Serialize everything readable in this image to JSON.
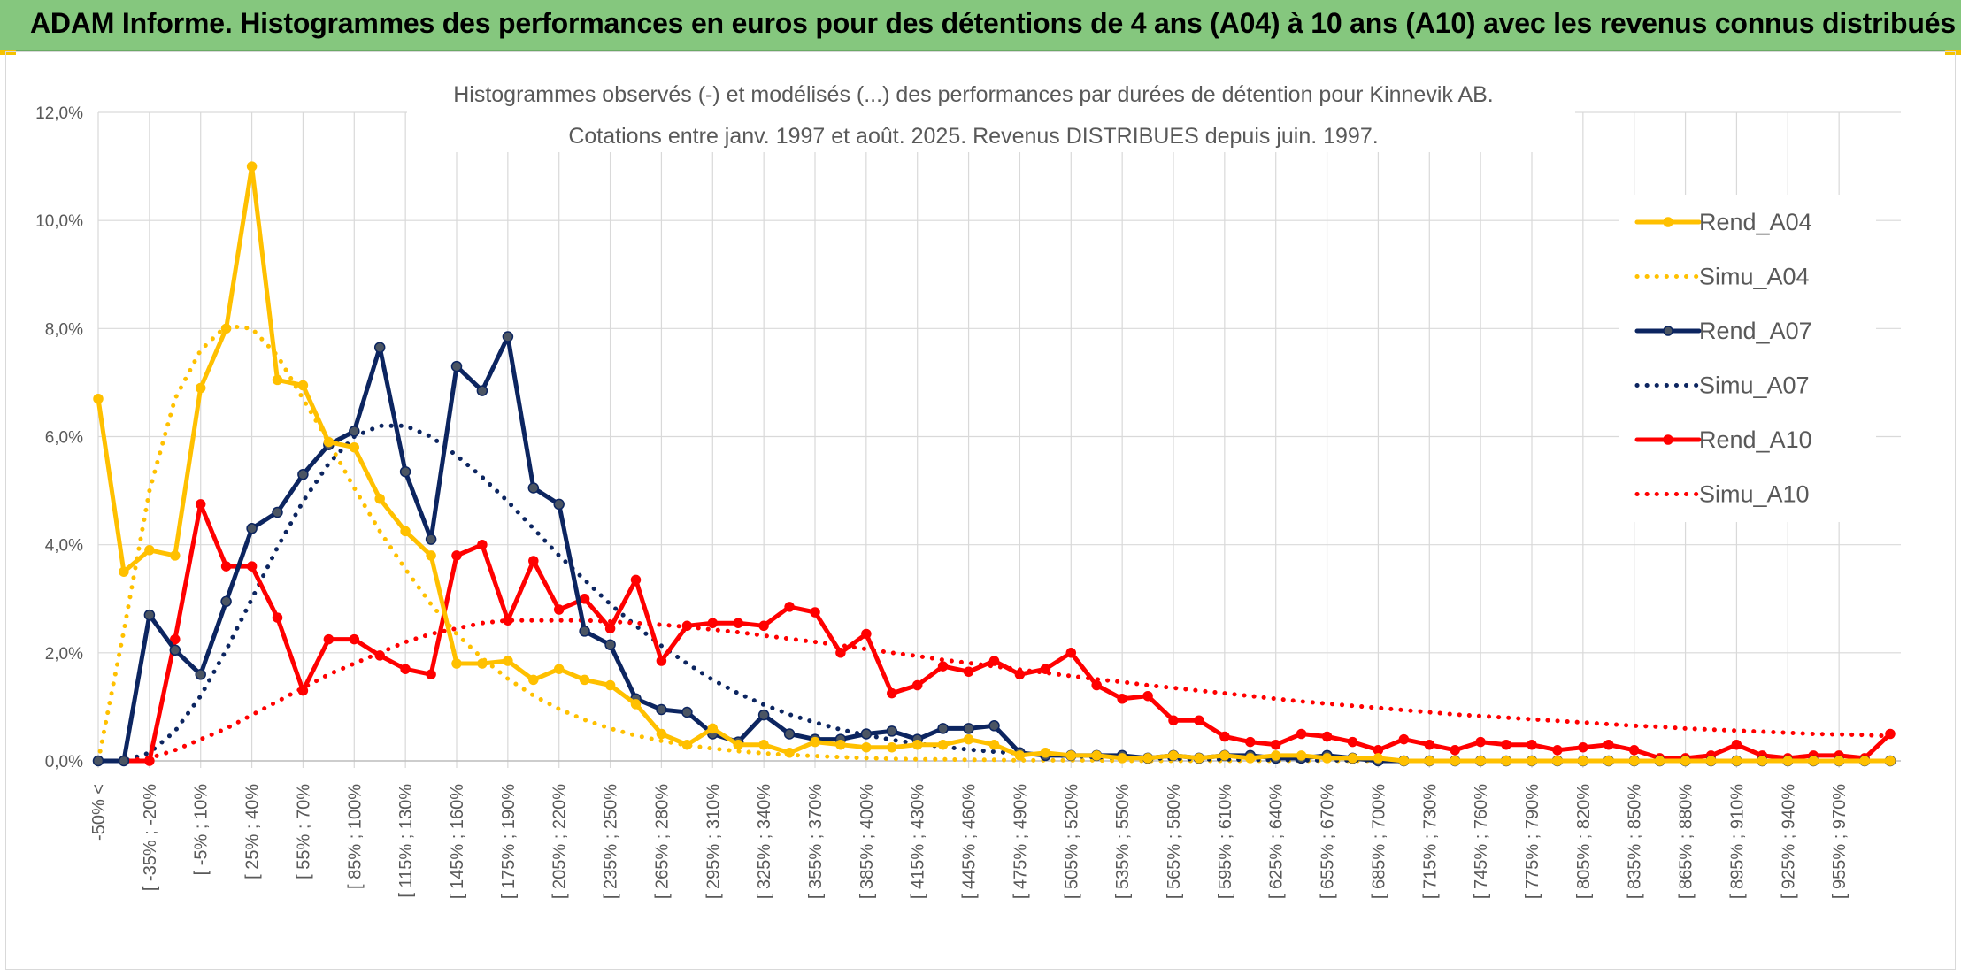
{
  "banner": {
    "title": "ADAM Informe. Histogrammes des performances en euros pour des détentions de 4 ans (A04) à 10 ans (A10) avec les revenus connus distribués"
  },
  "colors": {
    "banner_bg": "#85c77e",
    "accent_corner": "#f5c200",
    "A04": "#ffc000",
    "A07": "#0c2560",
    "A10": "#ff0000",
    "gridline": "#d9d9d9",
    "text": "#595959"
  },
  "chart_data": {
    "type": "line",
    "title": [
      "Histogrammes observés (-) et modélisés (...) des performances par durées de détention pour Kinnevik AB.",
      "Cotations entre janv. 1997 et août. 2025. Revenus DISTRIBUES depuis juin. 1997."
    ],
    "ylim": [
      0,
      12
    ],
    "y_ticks": [
      "0,0%",
      "2,0%",
      "4,0%",
      "6,0%",
      "8,0%",
      "10,0%",
      "12,0%"
    ],
    "y_tick_values": [
      0,
      2,
      4,
      6,
      8,
      10,
      12
    ],
    "grid": true,
    "legend_position": "right",
    "x_labels": [
      "-50% <",
      "[ -35% ; -20%",
      "[ -5% ; 10%",
      "[ 25% ; 40%",
      "[ 55% ; 70%",
      "[ 85% ; 100%",
      "[ 115% ; 130%",
      "[ 145% ; 160%",
      "[ 175% ; 190%",
      "[ 205% ; 220%",
      "[ 235% ; 250%",
      "[ 265% ; 280%",
      "[ 295% ; 310%",
      "[ 325% ; 340%",
      "[ 355% ; 370%",
      "[ 385% ; 400%",
      "[ 415% ; 430%",
      "[ 445% ; 460%",
      "[ 475% ; 490%",
      "[ 505% ; 520%",
      "[ 535% ; 550%",
      "[ 565% ; 580%",
      "[ 595% ; 610%",
      "[ 625% ; 640%",
      "[ 655% ; 670%",
      "[ 685% ; 700%",
      "[ 715% ; 730%",
      "[ 745% ; 760%",
      "[ 775% ; 790%",
      "[ 805% ; 820%",
      "[ 835% ; 850%",
      "[ 865% ; 880%",
      "[ 895% ; 910%",
      "[ 925% ; 940%",
      "[ 955% ; 970%"
    ],
    "series": [
      {
        "name": "Rend_A04",
        "style": "solid",
        "color": "#ffc000",
        "markers": true,
        "values": [
          6.7,
          3.5,
          3.9,
          3.8,
          6.9,
          8.0,
          11.0,
          7.05,
          6.95,
          5.9,
          5.8,
          4.85,
          4.25,
          3.8,
          1.8,
          1.8,
          1.85,
          1.5,
          1.7,
          1.5,
          1.4,
          1.05,
          0.5,
          0.3,
          0.6,
          0.3,
          0.3,
          0.15,
          0.35,
          0.3,
          0.25,
          0.25,
          0.3,
          0.3,
          0.4,
          0.3,
          0.1,
          0.15,
          0.1,
          0.1,
          0.05,
          0.05,
          0.1,
          0.05,
          0.1,
          0.05,
          0.1,
          0.1,
          0.05,
          0.05,
          0.05,
          0,
          0,
          0,
          0,
          0,
          0,
          0,
          0,
          0,
          0,
          0,
          0,
          0,
          0,
          0,
          0,
          0,
          0,
          0,
          0
        ]
      },
      {
        "name": "Simu_A04",
        "style": "dotted",
        "color": "#ffc000",
        "markers": false,
        "values": [
          0,
          2.4,
          5.0,
          6.7,
          7.6,
          8.05,
          8.0,
          7.5,
          6.7,
          5.9,
          5.05,
          4.25,
          3.55,
          2.9,
          2.35,
          1.9,
          1.52,
          1.21,
          0.96,
          0.76,
          0.6,
          0.47,
          0.37,
          0.29,
          0.23,
          0.18,
          0.14,
          0.11,
          0.09,
          0.07,
          0.05,
          0.04,
          0.03,
          0.03,
          0.02,
          0.02,
          0.01,
          0.01,
          0.01,
          0.01,
          0,
          0,
          0,
          0,
          0,
          0,
          0,
          0,
          0,
          0,
          0,
          0,
          0,
          0,
          0,
          0,
          0,
          0,
          0,
          0,
          0,
          0,
          0,
          0,
          0,
          0,
          0,
          0,
          0,
          0,
          0
        ]
      },
      {
        "name": "Rend_A07",
        "style": "solid",
        "color": "#0c2560",
        "markers": true,
        "values": [
          0,
          0,
          2.7,
          2.05,
          1.6,
          2.95,
          4.3,
          4.6,
          5.3,
          5.85,
          6.1,
          7.65,
          5.35,
          4.1,
          7.3,
          6.85,
          7.85,
          5.05,
          4.75,
          2.4,
          2.15,
          1.15,
          0.95,
          0.9,
          0.5,
          0.35,
          0.85,
          0.5,
          0.4,
          0.4,
          0.5,
          0.55,
          0.4,
          0.6,
          0.6,
          0.65,
          0.15,
          0.1,
          0.1,
          0.1,
          0.1,
          0.05,
          0.1,
          0.05,
          0.1,
          0.1,
          0.05,
          0.05,
          0.1,
          0.05,
          0,
          0,
          0,
          0,
          0,
          0,
          0,
          0,
          0,
          0,
          0,
          0,
          0,
          0,
          0,
          0,
          0,
          0,
          0,
          0,
          0
        ]
      },
      {
        "name": "Simu_A07",
        "style": "dotted",
        "color": "#0c2560",
        "markers": false,
        "values": [
          0,
          0,
          0.15,
          0.55,
          1.2,
          2.05,
          3.0,
          3.95,
          4.8,
          5.5,
          6.0,
          6.2,
          6.2,
          6.0,
          5.65,
          5.25,
          4.8,
          4.3,
          3.8,
          3.35,
          2.9,
          2.5,
          2.13,
          1.8,
          1.5,
          1.25,
          1.04,
          0.86,
          0.71,
          0.58,
          0.48,
          0.39,
          0.32,
          0.26,
          0.21,
          0.17,
          0.14,
          0.11,
          0.09,
          0.07,
          0.06,
          0.05,
          0.04,
          0.03,
          0.03,
          0.02,
          0.02,
          0.01,
          0.01,
          0.01,
          0.01,
          0,
          0,
          0,
          0,
          0,
          0,
          0,
          0,
          0,
          0,
          0,
          0,
          0,
          0,
          0,
          0,
          0,
          0,
          0,
          0
        ]
      },
      {
        "name": "Rend_A10",
        "style": "solid",
        "color": "#ff0000",
        "markers": true,
        "values": [
          0,
          0,
          0,
          2.25,
          4.75,
          3.6,
          3.6,
          2.65,
          1.3,
          2.25,
          2.25,
          1.95,
          1.7,
          1.6,
          3.8,
          4.0,
          2.6,
          3.7,
          2.8,
          3.0,
          2.45,
          3.35,
          1.85,
          2.5,
          2.55,
          2.55,
          2.5,
          2.85,
          2.75,
          2.0,
          2.35,
          1.25,
          1.4,
          1.75,
          1.65,
          1.85,
          1.6,
          1.7,
          2.0,
          1.4,
          1.15,
          1.2,
          0.75,
          0.75,
          0.45,
          0.35,
          0.3,
          0.5,
          0.45,
          0.35,
          0.2,
          0.4,
          0.3,
          0.2,
          0.35,
          0.3,
          0.3,
          0.2,
          0.25,
          0.3,
          0.2,
          0.05,
          0.05,
          0.1,
          0.3,
          0.1,
          0.05,
          0.1,
          0.1,
          0.05,
          0.5
        ]
      },
      {
        "name": "Simu_A10",
        "style": "dotted",
        "color": "#ff0000",
        "markers": false,
        "values": [
          0,
          0,
          0.05,
          0.2,
          0.4,
          0.6,
          0.85,
          1.1,
          1.35,
          1.6,
          1.8,
          2.0,
          2.2,
          2.35,
          2.45,
          2.55,
          2.6,
          2.6,
          2.6,
          2.6,
          2.58,
          2.55,
          2.52,
          2.48,
          2.43,
          2.38,
          2.32,
          2.26,
          2.2,
          2.14,
          2.07,
          2.0,
          1.94,
          1.87,
          1.81,
          1.75,
          1.69,
          1.63,
          1.57,
          1.51,
          1.46,
          1.4,
          1.35,
          1.3,
          1.25,
          1.2,
          1.15,
          1.1,
          1.06,
          1.02,
          0.98,
          0.94,
          0.9,
          0.86,
          0.83,
          0.8,
          0.77,
          0.74,
          0.71,
          0.68,
          0.65,
          0.63,
          0.6,
          0.58,
          0.56,
          0.54,
          0.52,
          0.5,
          0.49,
          0.48,
          0.46
        ]
      }
    ]
  }
}
